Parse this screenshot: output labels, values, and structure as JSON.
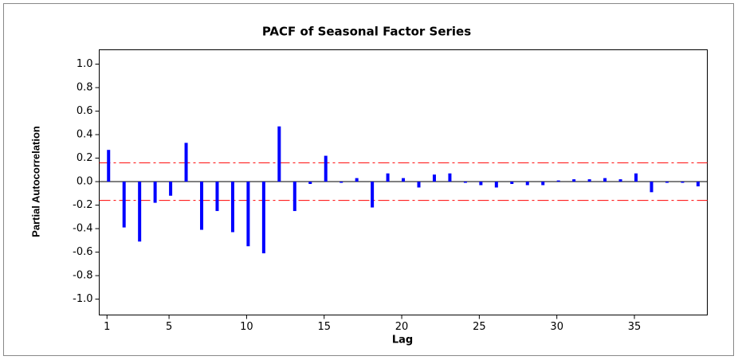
{
  "chart_data": {
    "type": "bar",
    "title": "PACF of Seasonal Factor Series",
    "x_label": "Lag",
    "y_label": "Partial Autocorrelation",
    "x": [
      1,
      2,
      3,
      4,
      5,
      6,
      7,
      8,
      9,
      10,
      11,
      12,
      13,
      14,
      15,
      16,
      17,
      18,
      19,
      20,
      21,
      22,
      23,
      24,
      25,
      26,
      27,
      28,
      29,
      30,
      31,
      32,
      33,
      34,
      35,
      36,
      37,
      38,
      39
    ],
    "values": [
      0.27,
      -0.39,
      -0.51,
      -0.18,
      -0.12,
      0.33,
      -0.41,
      -0.25,
      -0.43,
      -0.55,
      -0.61,
      0.47,
      -0.25,
      -0.02,
      0.22,
      -0.01,
      0.03,
      -0.22,
      0.07,
      0.03,
      -0.05,
      0.06,
      0.07,
      -0.01,
      -0.03,
      -0.05,
      -0.02,
      -0.03,
      -0.03,
      0.01,
      0.02,
      0.02,
      0.03,
      0.02,
      0.07,
      -0.09,
      -0.01,
      -0.01,
      -0.04
    ],
    "color": "#0000ff",
    "reference_lines": [
      0.16,
      -0.16
    ],
    "reference_color": "#ff0000",
    "xlim": [
      0.5,
      39.7
    ],
    "xticks": [
      1,
      5,
      10,
      15,
      20,
      25,
      30,
      35
    ],
    "ylim": [
      -1.135,
      1.122
    ],
    "yticks": [
      {
        "value": -1,
        "label": "-1.0"
      },
      -0.8,
      -0.6,
      -0.4,
      -0.2,
      {
        "value": 0,
        "label": "0.0"
      },
      0.2,
      0.4,
      0.6,
      0.8,
      {
        "value": 1,
        "label": "1.0"
      }
    ]
  }
}
